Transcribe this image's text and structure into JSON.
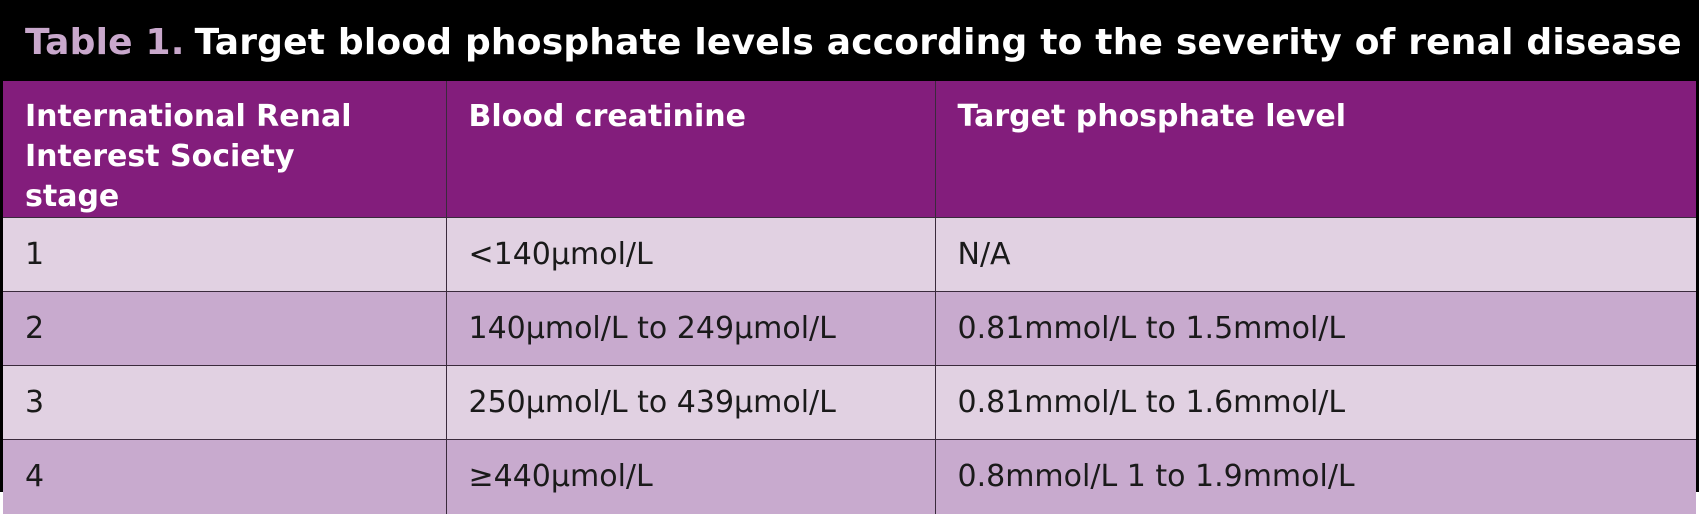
{
  "title": {
    "label": "Table 1.",
    "text": "Target blood phosphate levels according to the severity of renal disease"
  },
  "columns": [
    "International Renal Interest Society stage",
    "Blood creatinine",
    "Target phosphate level"
  ],
  "rows": [
    [
      "1",
      "<140µmol/L",
      "N/A"
    ],
    [
      "2",
      "140µmol/L to 249µmol/L",
      "0.81mmol/L to 1.5mmol/L"
    ],
    [
      "3",
      "250µmol/L to 439µmol/L",
      "0.81mmol/L to 1.6mmol/L"
    ],
    [
      "4",
      "≥440µmol/L",
      "0.8mmol/L 1 to 1.9mmol/L"
    ]
  ],
  "colors": {
    "header_bg": "#831d7c",
    "title_label": "#c9a8cc",
    "row_light": "#e1d1e2",
    "row_dark": "#c8aace"
  }
}
